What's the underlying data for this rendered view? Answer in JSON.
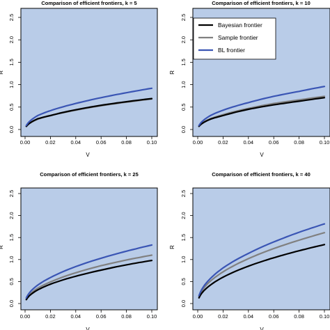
{
  "figure": {
    "panel_bg": "#b9cce8",
    "frame_color": "#000000"
  },
  "legend": {
    "entries": [
      {
        "label": "Bayesian frontier",
        "color": "#000000"
      },
      {
        "label": "Sample frontier",
        "color": "#808080"
      },
      {
        "label": "BL frontier",
        "color": "#3a55b4"
      }
    ],
    "placement": "top-right of the k = 10 panel"
  },
  "chart_data": [
    {
      "type": "line",
      "title": "Comparison of efficient frontiers, k = 5",
      "xlabel": "V",
      "ylabel": "R",
      "xlim": [
        0,
        0.1
      ],
      "ylim": [
        0,
        2.5
      ],
      "xticks": [
        "0.00",
        "0.02",
        "0.04",
        "0.06",
        "0.08",
        "0.10"
      ],
      "yticks": [
        "0.0",
        "0.5",
        "1.0",
        "1.5",
        "2.0",
        "2.5"
      ],
      "x": [
        0.001,
        0.01,
        0.02,
        0.04,
        0.06,
        0.08,
        0.1
      ],
      "series": [
        {
          "name": "Bayesian frontier",
          "color": "#000000",
          "values": [
            0.07,
            0.24,
            0.31,
            0.44,
            0.54,
            0.62,
            0.69
          ]
        },
        {
          "name": "Sample frontier",
          "color": "#808080",
          "values": [
            0.07,
            0.23,
            0.31,
            0.43,
            0.53,
            0.61,
            0.68
          ]
        },
        {
          "name": "BL frontier",
          "color": "#3a55b4",
          "values": [
            0.09,
            0.31,
            0.42,
            0.58,
            0.71,
            0.82,
            0.92
          ]
        }
      ]
    },
    {
      "type": "line",
      "title": "Comparison of efficient frontiers, k = 10",
      "xlabel": "V",
      "ylabel": "R",
      "xlim": [
        0,
        0.1
      ],
      "ylim": [
        0,
        2.5
      ],
      "xticks": [
        "0.00",
        "0.02",
        "0.04",
        "0.06",
        "0.08",
        "0.10"
      ],
      "yticks": [
        "0.0",
        "0.5",
        "1.0",
        "1.5",
        "2.0",
        "2.5"
      ],
      "x": [
        0.001,
        0.01,
        0.02,
        0.04,
        0.06,
        0.08,
        0.1
      ],
      "series": [
        {
          "name": "Bayesian frontier",
          "color": "#000000",
          "values": [
            0.07,
            0.23,
            0.31,
            0.45,
            0.55,
            0.63,
            0.71
          ]
        },
        {
          "name": "Sample frontier",
          "color": "#808080",
          "values": [
            0.08,
            0.24,
            0.33,
            0.47,
            0.58,
            0.66,
            0.74
          ]
        },
        {
          "name": "BL frontier",
          "color": "#3a55b4",
          "values": [
            0.09,
            0.31,
            0.43,
            0.6,
            0.74,
            0.85,
            0.96
          ]
        }
      ]
    },
    {
      "type": "line",
      "title": "Comparison of efficient frontiers, k = 25",
      "xlabel": "V",
      "ylabel": "R",
      "xlim": [
        0,
        0.1
      ],
      "ylim": [
        0,
        2.5
      ],
      "xticks": [
        "0.00",
        "0.02",
        "0.04",
        "0.06",
        "0.08",
        "0.10"
      ],
      "yticks": [
        "0.0",
        "0.5",
        "1.0",
        "1.5",
        "2.0",
        "2.5"
      ],
      "x": [
        0.001,
        0.01,
        0.02,
        0.04,
        0.06,
        0.08,
        0.1
      ],
      "series": [
        {
          "name": "Bayesian frontier",
          "color": "#000000",
          "values": [
            0.09,
            0.31,
            0.44,
            0.62,
            0.76,
            0.88,
            0.98
          ]
        },
        {
          "name": "Sample frontier",
          "color": "#808080",
          "values": [
            0.1,
            0.35,
            0.49,
            0.7,
            0.86,
            0.99,
            1.1
          ]
        },
        {
          "name": "BL frontier",
          "color": "#3a55b4",
          "values": [
            0.13,
            0.42,
            0.59,
            0.84,
            1.03,
            1.19,
            1.33
          ]
        }
      ]
    },
    {
      "type": "line",
      "title": "Comparison of efficient frontiers, k = 40",
      "xlabel": "V",
      "ylabel": "R",
      "xlim": [
        0,
        0.1
      ],
      "ylim": [
        0,
        2.5
      ],
      "xticks": [
        "0.00",
        "0.02",
        "0.04",
        "0.06",
        "0.08",
        "0.10"
      ],
      "yticks": [
        "0.0",
        "0.5",
        "1.0",
        "1.5",
        "2.0",
        "2.5"
      ],
      "x": [
        0.001,
        0.01,
        0.02,
        0.04,
        0.06,
        0.08,
        0.1
      ],
      "series": [
        {
          "name": "Bayesian frontier",
          "color": "#000000",
          "values": [
            0.13,
            0.42,
            0.6,
            0.85,
            1.04,
            1.2,
            1.34
          ]
        },
        {
          "name": "Sample frontier",
          "color": "#808080",
          "values": [
            0.16,
            0.51,
            0.72,
            1.02,
            1.25,
            1.44,
            1.61
          ]
        },
        {
          "name": "BL frontier",
          "color": "#3a55b4",
          "values": [
            0.18,
            0.57,
            0.81,
            1.14,
            1.4,
            1.62,
            1.81
          ]
        }
      ]
    }
  ]
}
